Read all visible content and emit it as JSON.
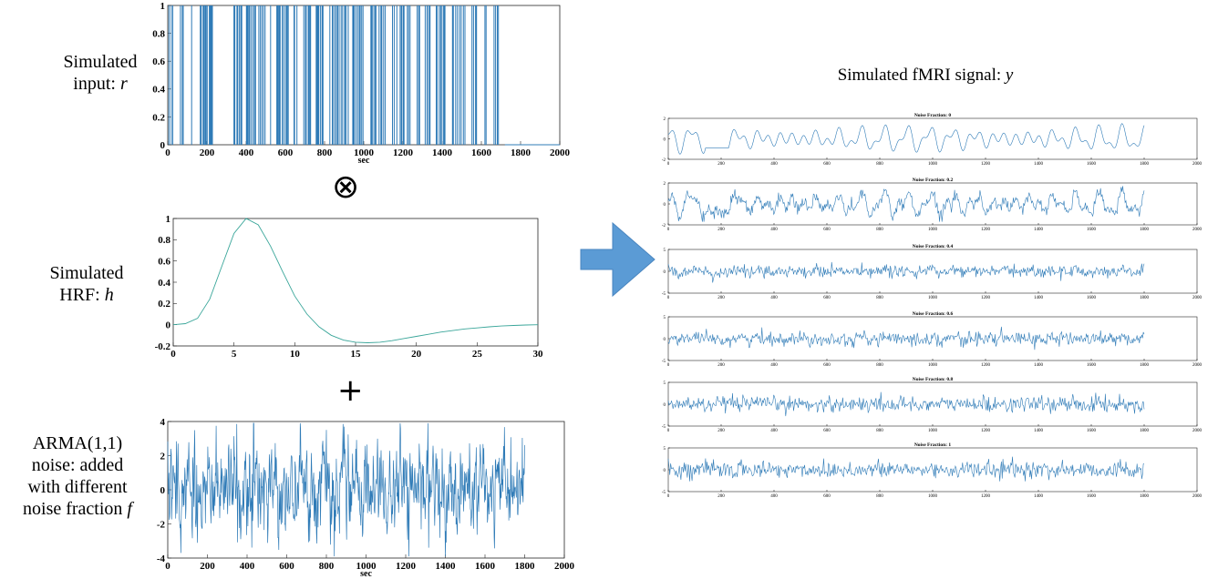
{
  "labels": {
    "input_line1": "Simulated",
    "input_line2": "input: ",
    "input_var": "r",
    "hrf_line1": "Simulated",
    "hrf_line2": "HRF: ",
    "hrf_var": "h",
    "noise_line1": "ARMA(1,1)",
    "noise_line2": "noise: added",
    "noise_line3": "with different",
    "noise_line4": "noise fraction ",
    "noise_var": "f",
    "fmri_title": "Simulated fMRI signal: ",
    "fmri_var": "y"
  },
  "symbols": {
    "convolve": "⊗",
    "plus": "+"
  },
  "colors": {
    "signal": "#2f7bb7",
    "arrow": "#5b9bd5",
    "arrow_edge": "#4a86c0"
  },
  "chart_data": [
    {
      "id": "input",
      "type": "bar",
      "title": "",
      "xlabel": "sec",
      "ylabel": "",
      "xlim": [
        0,
        2000
      ],
      "ylim": [
        0,
        1
      ],
      "xticks": [
        "0",
        "200",
        "400",
        "600",
        "800",
        "1000",
        "1200",
        "1400",
        "1600",
        "1800",
        "2000"
      ],
      "yticks": [
        "0",
        "0.2",
        "0.4",
        "0.6",
        "0.8",
        "1"
      ],
      "series": [
        {
          "kind": "binary_stimulus",
          "x_range": [
            0,
            1720
          ],
          "values": [
            0,
            1
          ]
        }
      ]
    },
    {
      "id": "hrf",
      "type": "line",
      "title": "",
      "xlabel": "",
      "ylabel": "",
      "xlim": [
        0,
        30
      ],
      "ylim": [
        -0.2,
        1
      ],
      "xticks": [
        "0",
        "5",
        "10",
        "15",
        "20",
        "25",
        "30"
      ],
      "yticks": [
        "-0.2",
        "0",
        "0.2",
        "0.4",
        "0.6",
        "0.8",
        "1"
      ],
      "series": [
        {
          "x": [
            0,
            1,
            2,
            3,
            4,
            5,
            6,
            7,
            8,
            9,
            10,
            11,
            12,
            13,
            14,
            15,
            16,
            17,
            18,
            19,
            20,
            21,
            22,
            23,
            24,
            25,
            26,
            27,
            28,
            29,
            30
          ],
          "values": [
            0,
            0.01,
            0.06,
            0.24,
            0.55,
            0.86,
            1.0,
            0.94,
            0.74,
            0.5,
            0.27,
            0.1,
            -0.02,
            -0.1,
            -0.145,
            -0.165,
            -0.17,
            -0.165,
            -0.15,
            -0.13,
            -0.11,
            -0.09,
            -0.07,
            -0.055,
            -0.04,
            -0.03,
            -0.02,
            -0.012,
            -0.007,
            -0.003,
            0
          ]
        }
      ]
    },
    {
      "id": "noise",
      "type": "line",
      "title": "",
      "xlabel": "sec",
      "ylabel": "",
      "xlim": [
        0,
        2000
      ],
      "ylim": [
        -4,
        4
      ],
      "xticks": [
        "0",
        "200",
        "400",
        "600",
        "800",
        "1000",
        "1200",
        "1400",
        "1600",
        "1800",
        "2000"
      ],
      "yticks": [
        "-4",
        "-2",
        "0",
        "2",
        "4"
      ],
      "series": [
        {
          "kind": "noise",
          "x_range": [
            0,
            1800
          ],
          "amplitude": 1.2
        }
      ]
    },
    {
      "id": "fmri_0",
      "type": "line",
      "title": "Noise Fraction: 0",
      "xlim": [
        0,
        2000
      ],
      "ylim": [
        -2,
        2
      ],
      "xticks": [
        "0",
        "200",
        "400",
        "600",
        "800",
        "1000",
        "1200",
        "1400",
        "1600",
        "1800",
        "2000"
      ],
      "yticks": [
        "-2",
        "0",
        "2"
      ],
      "series": [
        {
          "x_range": [
            0,
            1800
          ],
          "noise_fraction": 0
        }
      ]
    },
    {
      "id": "fmri_02",
      "type": "line",
      "title": "Noise Fraction: 0.2",
      "xlim": [
        0,
        2000
      ],
      "ylim": [
        -2,
        2
      ],
      "xticks": [
        "0",
        "200",
        "400",
        "600",
        "800",
        "1000",
        "1200",
        "1400",
        "1600",
        "1800",
        "2000"
      ],
      "yticks": [
        "-2",
        "0",
        "2"
      ],
      "series": [
        {
          "x_range": [
            0,
            1800
          ],
          "noise_fraction": 0.2
        }
      ]
    },
    {
      "id": "fmri_04",
      "type": "line",
      "title": "Noise Fraction: 0.4",
      "xlim": [
        0,
        2000
      ],
      "ylim": [
        -5,
        5
      ],
      "xticks": [
        "0",
        "200",
        "400",
        "600",
        "800",
        "1000",
        "1200",
        "1400",
        "1600",
        "1800",
        "2000"
      ],
      "yticks": [
        "-5",
        "0",
        "5"
      ],
      "series": [
        {
          "x_range": [
            0,
            1800
          ],
          "noise_fraction": 0.4
        }
      ]
    },
    {
      "id": "fmri_06",
      "type": "line",
      "title": "Noise Fraction: 0.6",
      "xlim": [
        0,
        2000
      ],
      "ylim": [
        -5,
        5
      ],
      "xticks": [
        "0",
        "200",
        "400",
        "600",
        "800",
        "1000",
        "1200",
        "1400",
        "1600",
        "1800",
        "2000"
      ],
      "yticks": [
        "-5",
        "0",
        "5"
      ],
      "series": [
        {
          "x_range": [
            0,
            1800
          ],
          "noise_fraction": 0.6
        }
      ]
    },
    {
      "id": "fmri_08",
      "type": "line",
      "title": "Noise Fraction: 0.8",
      "xlim": [
        0,
        2000
      ],
      "ylim": [
        -5,
        5
      ],
      "xticks": [
        "0",
        "200",
        "400",
        "600",
        "800",
        "1000",
        "1200",
        "1400",
        "1600",
        "1800",
        "2000"
      ],
      "yticks": [
        "-5",
        "0",
        "5"
      ],
      "series": [
        {
          "x_range": [
            0,
            1800
          ],
          "noise_fraction": 0.8
        }
      ]
    },
    {
      "id": "fmri_1",
      "type": "line",
      "title": "Noise Fraction: 1",
      "xlim": [
        0,
        2000
      ],
      "ylim": [
        -5,
        5
      ],
      "xticks": [
        "0",
        "200",
        "400",
        "600",
        "800",
        "1000",
        "1200",
        "1400",
        "1600",
        "1800",
        "2000"
      ],
      "yticks": [
        "-5",
        "0",
        "5"
      ],
      "series": [
        {
          "x_range": [
            0,
            1800
          ],
          "noise_fraction": 1
        }
      ]
    }
  ]
}
